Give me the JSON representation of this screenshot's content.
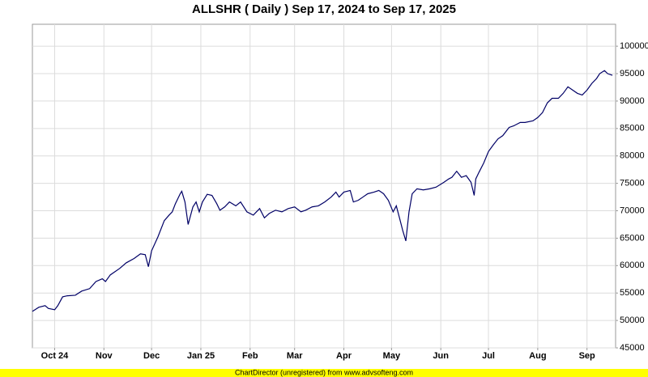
{
  "chart_data": {
    "type": "line",
    "title": "ALLSHR ( Daily ) Sep 17, 2024 to Sep 17, 2025",
    "footer": "ChartDirector (unregistered) from www.advsofteng.com",
    "x": [
      "2024-09-17",
      "2024-09-21",
      "2024-09-25",
      "2024-09-27",
      "2024-10-01",
      "2024-10-03",
      "2024-10-06",
      "2024-10-09",
      "2024-10-14",
      "2024-10-18",
      "2024-10-23",
      "2024-10-27",
      "2024-10-31",
      "2024-11-02",
      "2024-11-05",
      "2024-11-11",
      "2024-11-15",
      "2024-11-20",
      "2024-11-24",
      "2024-11-27",
      "2024-11-29",
      "2024-12-01",
      "2024-12-05",
      "2024-12-09",
      "2024-12-12",
      "2024-12-14",
      "2024-12-16",
      "2024-12-19",
      "2024-12-20",
      "2024-12-22",
      "2024-12-24",
      "2024-12-27",
      "2024-12-29",
      "2024-12-31",
      "2025-01-02",
      "2025-01-05",
      "2025-01-08",
      "2025-01-11",
      "2025-01-13",
      "2025-01-16",
      "2025-01-19",
      "2025-01-23",
      "2025-01-26",
      "2025-01-30",
      "2025-02-03",
      "2025-02-07",
      "2025-02-10",
      "2025-02-13",
      "2025-02-17",
      "2025-02-21",
      "2025-02-25",
      "2025-03-01",
      "2025-03-05",
      "2025-03-08",
      "2025-03-12",
      "2025-03-16",
      "2025-03-20",
      "2025-03-24",
      "2025-03-27",
      "2025-03-29",
      "2025-04-01",
      "2025-04-05",
      "2025-04-07",
      "2025-04-10",
      "2025-04-13",
      "2025-04-16",
      "2025-04-20",
      "2025-04-23",
      "2025-04-26",
      "2025-04-29",
      "2025-05-02",
      "2025-05-04",
      "2025-05-06",
      "2025-05-08",
      "2025-05-10",
      "2025-05-12",
      "2025-05-14",
      "2025-05-17",
      "2025-05-21",
      "2025-05-25",
      "2025-05-29",
      "2025-06-03",
      "2025-06-06",
      "2025-06-08",
      "2025-06-11",
      "2025-06-14",
      "2025-06-17",
      "2025-06-20",
      "2025-06-22",
      "2025-06-23",
      "2025-06-25",
      "2025-06-28",
      "2025-07-01",
      "2025-07-04",
      "2025-07-07",
      "2025-07-10",
      "2025-07-14",
      "2025-07-17",
      "2025-07-21",
      "2025-07-24",
      "2025-07-29",
      "2025-08-01",
      "2025-08-04",
      "2025-08-07",
      "2025-08-10",
      "2025-08-14",
      "2025-08-17",
      "2025-08-20",
      "2025-08-23",
      "2025-08-26",
      "2025-08-29",
      "2025-09-01",
      "2025-09-04",
      "2025-09-07",
      "2025-09-09",
      "2025-09-12",
      "2025-09-14",
      "2025-09-17"
    ],
    "series": [
      {
        "name": "ALLSHR",
        "color": "#000066",
        "values": [
          51650,
          52400,
          52700,
          52200,
          51950,
          52700,
          54300,
          54500,
          54600,
          55350,
          55800,
          57100,
          57600,
          57100,
          58300,
          59500,
          60500,
          61300,
          62150,
          62000,
          59800,
          62700,
          65250,
          68200,
          69200,
          69800,
          71300,
          73100,
          73550,
          71600,
          67500,
          70700,
          71600,
          69800,
          71600,
          73000,
          72800,
          71300,
          70100,
          70700,
          71600,
          70900,
          71600,
          69800,
          69200,
          70400,
          68700,
          69500,
          70100,
          69800,
          70400,
          70700,
          69800,
          70100,
          70700,
          70900,
          71600,
          72500,
          73400,
          72500,
          73400,
          73700,
          71600,
          71900,
          72500,
          73100,
          73400,
          73700,
          73100,
          71900,
          69800,
          70900,
          68700,
          66450,
          64500,
          69800,
          73100,
          74000,
          73800,
          74000,
          74300,
          75200,
          75800,
          76100,
          77200,
          76100,
          76400,
          75200,
          72800,
          75800,
          77000,
          78700,
          80800,
          82000,
          83100,
          83700,
          85200,
          85500,
          86100,
          86100,
          86400,
          87000,
          87900,
          89650,
          90500,
          90500,
          91400,
          92600,
          92000,
          91400,
          91100,
          92000,
          93200,
          94100,
          95000,
          95550,
          95000,
          94700
        ]
      }
    ],
    "xlim": [
      "2024-09-17",
      "2025-09-19"
    ],
    "xticks": [
      {
        "value": "2024-10-01",
        "label": "Oct 24"
      },
      {
        "value": "2024-11-01",
        "label": "Nov"
      },
      {
        "value": "2024-12-01",
        "label": "Dec"
      },
      {
        "value": "2025-01-01",
        "label": "Jan 25"
      },
      {
        "value": "2025-02-01",
        "label": "Feb"
      },
      {
        "value": "2025-03-01",
        "label": "Mar"
      },
      {
        "value": "2025-04-01",
        "label": "Apr"
      },
      {
        "value": "2025-05-01",
        "label": "May"
      },
      {
        "value": "2025-06-01",
        "label": "Jun"
      },
      {
        "value": "2025-07-01",
        "label": "Jul"
      },
      {
        "value": "2025-08-01",
        "label": "Aug"
      },
      {
        "value": "2025-09-01",
        "label": "Sep"
      }
    ],
    "ylim": [
      45000,
      104000
    ],
    "yticks": [
      45000,
      50000,
      55000,
      60000,
      65000,
      70000,
      75000,
      80000,
      85000,
      90000,
      95000,
      100000
    ],
    "grid": true
  }
}
